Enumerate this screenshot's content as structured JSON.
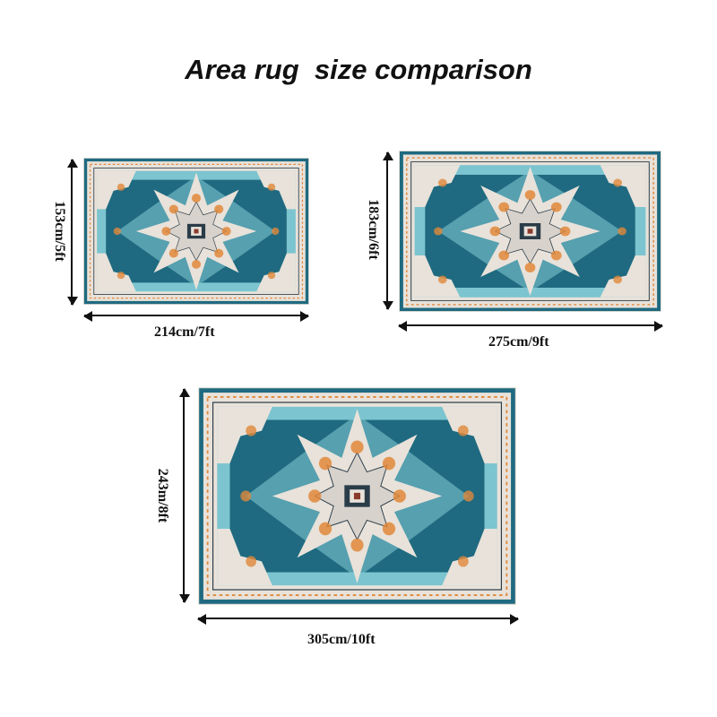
{
  "title": "Area rug  size comparison",
  "colors": {
    "teal": "#1f6a80",
    "cream": "#e8e2da",
    "orange": "#e0883a",
    "aqua": "#7cc4cf",
    "dark": "#2a3c48"
  },
  "rugs": [
    {
      "width_label": "214cm/7ft",
      "height_label": "153cm/5ft"
    },
    {
      "width_label": "275cm/9ft",
      "height_label": "183cm/6ft"
    },
    {
      "width_label": "305cm/10ft",
      "height_label": "243m/8ft"
    }
  ]
}
